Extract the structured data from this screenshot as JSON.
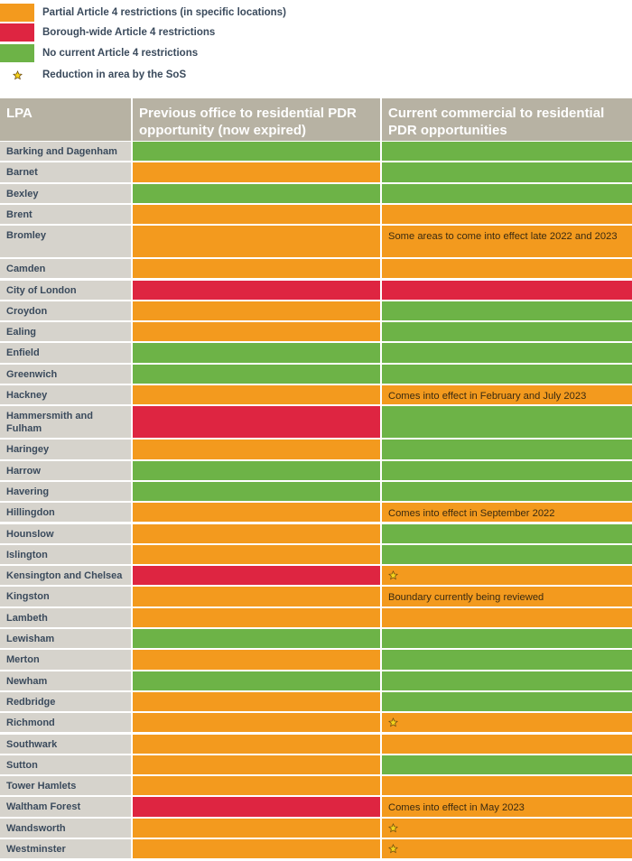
{
  "colors": {
    "partial": "#f39a1e",
    "borough": "#de2541",
    "none": "#6db347",
    "header_bg": "#b7b2a3",
    "lpa_bg": "#d6d3cc",
    "star": "#f5d21b"
  },
  "legend": [
    {
      "key": "partial",
      "label": "Partial Article 4 restrictions (in specific locations)"
    },
    {
      "key": "borough",
      "label": "Borough-wide Article 4 restrictions"
    },
    {
      "key": "none",
      "label": "No current Article 4 restrictions"
    },
    {
      "key": "star",
      "label": "Reduction in area by the SoS",
      "icon": "star-icon"
    }
  ],
  "chart_data": {
    "type": "table",
    "columns": [
      "LPA",
      "Previous office to residential PDR opportunity (now expired)",
      "Current commercial to residential PDR opportunities"
    ],
    "rows": [
      {
        "lpa": "Barking and Dagenham",
        "prev": "none",
        "curr": "none",
        "note": "",
        "star": false
      },
      {
        "lpa": "Barnet",
        "prev": "partial",
        "curr": "none",
        "note": "",
        "star": false
      },
      {
        "lpa": "Bexley",
        "prev": "none",
        "curr": "none",
        "note": "",
        "star": false
      },
      {
        "lpa": "Brent",
        "prev": "partial",
        "curr": "partial",
        "note": "",
        "star": false
      },
      {
        "lpa": "Bromley",
        "prev": "partial",
        "curr": "partial",
        "note": "Some areas to come into effect late 2022 and 2023",
        "star": false
      },
      {
        "lpa": "Camden",
        "prev": "partial",
        "curr": "partial",
        "note": "",
        "star": false
      },
      {
        "lpa": "City of London",
        "prev": "borough",
        "curr": "borough",
        "note": "",
        "star": false
      },
      {
        "lpa": "Croydon",
        "prev": "partial",
        "curr": "none",
        "note": "",
        "star": false
      },
      {
        "lpa": "Ealing",
        "prev": "partial",
        "curr": "none",
        "note": "",
        "star": false
      },
      {
        "lpa": "Enfield",
        "prev": "none",
        "curr": "none",
        "note": "",
        "star": false
      },
      {
        "lpa": "Greenwich",
        "prev": "none",
        "curr": "none",
        "note": "",
        "star": false
      },
      {
        "lpa": "Hackney",
        "prev": "partial",
        "curr": "partial",
        "note": "Comes into effect in February and July 2023",
        "star": false
      },
      {
        "lpa": "Hammersmith and Fulham",
        "prev": "borough",
        "curr": "none",
        "note": "",
        "star": false
      },
      {
        "lpa": "Haringey",
        "prev": "partial",
        "curr": "none",
        "note": "",
        "star": false
      },
      {
        "lpa": "Harrow",
        "prev": "none",
        "curr": "none",
        "note": "",
        "star": false
      },
      {
        "lpa": "Havering",
        "prev": "none",
        "curr": "none",
        "note": "",
        "star": false
      },
      {
        "lpa": "Hillingdon",
        "prev": "partial",
        "curr": "partial",
        "note": "Comes into effect in September 2022",
        "star": false
      },
      {
        "lpa": "Hounslow",
        "prev": "partial",
        "curr": "none",
        "note": "",
        "star": false
      },
      {
        "lpa": "Islington",
        "prev": "partial",
        "curr": "none",
        "note": "",
        "star": false
      },
      {
        "lpa": "Kensington and Chelsea",
        "prev": "borough",
        "curr": "partial",
        "note": "",
        "star": true
      },
      {
        "lpa": "Kingston",
        "prev": "partial",
        "curr": "partial",
        "note": "Boundary currently being reviewed",
        "star": false
      },
      {
        "lpa": "Lambeth",
        "prev": "partial",
        "curr": "partial",
        "note": "",
        "star": false
      },
      {
        "lpa": "Lewisham",
        "prev": "none",
        "curr": "none",
        "note": "",
        "star": false
      },
      {
        "lpa": "Merton",
        "prev": "partial",
        "curr": "none",
        "note": "",
        "star": false
      },
      {
        "lpa": "Newham",
        "prev": "none",
        "curr": "none",
        "note": "",
        "star": false
      },
      {
        "lpa": "Redbridge",
        "prev": "partial",
        "curr": "none",
        "note": "",
        "star": false
      },
      {
        "lpa": "Richmond",
        "prev": "partial",
        "curr": "partial",
        "note": "",
        "star": true
      },
      {
        "lpa": "Southwark",
        "prev": "partial",
        "curr": "partial",
        "note": "",
        "star": false
      },
      {
        "lpa": "Sutton",
        "prev": "partial",
        "curr": "none",
        "note": "",
        "star": false
      },
      {
        "lpa": "Tower Hamlets",
        "prev": "partial",
        "curr": "partial",
        "note": "",
        "star": false
      },
      {
        "lpa": "Waltham Forest",
        "prev": "borough",
        "curr": "partial",
        "note": "Comes into effect in May 2023",
        "star": false
      },
      {
        "lpa": "Wandsworth",
        "prev": "partial",
        "curr": "partial",
        "note": "",
        "star": true
      },
      {
        "lpa": "Westminster",
        "prev": "partial",
        "curr": "partial",
        "note": "",
        "star": true
      }
    ]
  }
}
